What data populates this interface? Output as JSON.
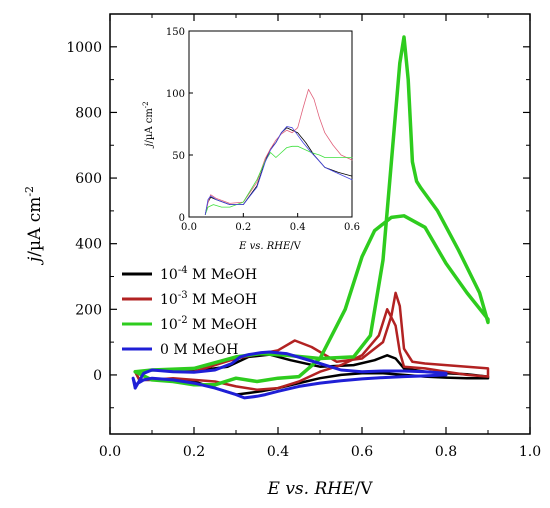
{
  "chart_data": [
    {
      "type": "line",
      "xlabel": "E vs. RHE/V",
      "ylabel": "j/µA cm-2",
      "xlim": [
        0.0,
        1.0
      ],
      "ylim": [
        -180,
        1100
      ],
      "xticks": [
        "0.0",
        "0.2",
        "0.4",
        "0.6",
        "0.8",
        "1.0"
      ],
      "yticks": [
        "0",
        "200",
        "400",
        "600",
        "800",
        "1000"
      ],
      "grid": false,
      "legend_position": "left-middle",
      "legend": [
        {
          "mantissa": "10",
          "exponent": "-4",
          "suffix": " M MeOH"
        },
        {
          "mantissa": "10",
          "exponent": "-3",
          "suffix": " M MeOH"
        },
        {
          "mantissa": "10",
          "exponent": "-2",
          "suffix": " M MeOH"
        },
        {
          "mantissa": "",
          "exponent": "",
          "suffix": "0 M MeOH"
        }
      ],
      "series": [
        {
          "color": "#000000",
          "width": 2.5,
          "x": [
            0.06,
            0.1,
            0.2,
            0.28,
            0.33,
            0.38,
            0.43,
            0.5,
            0.58,
            0.63,
            0.66,
            0.68,
            0.7,
            0.75,
            0.8,
            0.85,
            0.9,
            0.9,
            0.85,
            0.8,
            0.75,
            0.7,
            0.65,
            0.6,
            0.55,
            0.5,
            0.45,
            0.4,
            0.36,
            0.33,
            0.3,
            0.25,
            0.2,
            0.15,
            0.1,
            0.07,
            0.06
          ],
          "y": [
            10,
            15,
            12,
            25,
            55,
            62,
            45,
            25,
            30,
            45,
            60,
            50,
            20,
            10,
            5,
            2,
            -5,
            -10,
            -10,
            -8,
            -5,
            0,
            5,
            5,
            0,
            -10,
            -25,
            -40,
            -50,
            -55,
            -60,
            -40,
            -20,
            -15,
            -15,
            -15,
            10
          ]
        },
        {
          "color": "#b22222",
          "width": 2.5,
          "x": [
            0.06,
            0.1,
            0.2,
            0.3,
            0.36,
            0.4,
            0.44,
            0.48,
            0.54,
            0.6,
            0.65,
            0.67,
            0.68,
            0.69,
            0.7,
            0.72,
            0.75,
            0.8,
            0.85,
            0.9,
            0.9,
            0.85,
            0.8,
            0.75,
            0.7,
            0.69,
            0.68,
            0.66,
            0.64,
            0.6,
            0.55,
            0.5,
            0.45,
            0.4,
            0.35,
            0.3,
            0.25,
            0.2,
            0.15,
            0.1,
            0.07,
            0.06
          ],
          "y": [
            10,
            15,
            10,
            50,
            65,
            75,
            105,
            85,
            40,
            50,
            100,
            180,
            250,
            210,
            80,
            40,
            35,
            30,
            25,
            20,
            -5,
            0,
            10,
            20,
            25,
            70,
            150,
            200,
            120,
            60,
            30,
            10,
            -20,
            -40,
            -45,
            -35,
            -20,
            -15,
            -10,
            -15,
            -15,
            10
          ]
        },
        {
          "color": "#2ecc1e",
          "width": 3.5,
          "x": [
            0.06,
            0.1,
            0.2,
            0.3,
            0.36,
            0.42,
            0.5,
            0.58,
            0.62,
            0.65,
            0.67,
            0.69,
            0.7,
            0.71,
            0.72,
            0.73,
            0.74,
            0.78,
            0.83,
            0.88,
            0.9,
            0.9,
            0.85,
            0.8,
            0.75,
            0.7,
            0.67,
            0.63,
            0.6,
            0.56,
            0.5,
            0.45,
            0.4,
            0.35,
            0.3,
            0.25,
            0.2,
            0.15,
            0.1,
            0.06
          ],
          "y": [
            10,
            15,
            20,
            55,
            65,
            60,
            50,
            55,
            120,
            350,
            650,
            950,
            1030,
            900,
            650,
            590,
            570,
            500,
            380,
            250,
            160,
            170,
            250,
            340,
            450,
            485,
            480,
            440,
            360,
            200,
            50,
            -5,
            -10,
            -20,
            -10,
            -30,
            -30,
            -20,
            -15,
            10
          ]
        },
        {
          "color": "#1f1fd6",
          "width": 3,
          "x": [
            0.06,
            0.08,
            0.1,
            0.15,
            0.2,
            0.25,
            0.29,
            0.31,
            0.33,
            0.36,
            0.38,
            0.42,
            0.46,
            0.5,
            0.55,
            0.6,
            0.65,
            0.7,
            0.75,
            0.8,
            0.8,
            0.75,
            0.7,
            0.65,
            0.6,
            0.55,
            0.5,
            0.45,
            0.4,
            0.37,
            0.35,
            0.32,
            0.3,
            0.25,
            0.2,
            0.15,
            0.1,
            0.08,
            0.06,
            0.055,
            0.06
          ],
          "y": [
            -40,
            5,
            15,
            10,
            8,
            15,
            35,
            55,
            62,
            68,
            70,
            65,
            50,
            35,
            15,
            10,
            12,
            12,
            10,
            5,
            0,
            -3,
            -5,
            -8,
            -12,
            -18,
            -25,
            -35,
            -50,
            -60,
            -65,
            -70,
            -60,
            -40,
            -25,
            -15,
            -10,
            -15,
            -30,
            -10,
            -40
          ]
        }
      ]
    },
    {
      "type": "line",
      "xlabel": "E vs. RHE/V",
      "ylabel": "j/µA cm-2",
      "xlim": [
        0.0,
        0.6
      ],
      "ylim": [
        0,
        150
      ],
      "xticks": [
        "0.0",
        "0.2",
        "0.4",
        "0.6"
      ],
      "yticks": [
        "0",
        "50",
        "100",
        "150"
      ],
      "grid": false,
      "series": [
        {
          "color": "#000000",
          "width": 0.8,
          "x": [
            0.06,
            0.07,
            0.08,
            0.1,
            0.15,
            0.2,
            0.25,
            0.28,
            0.3,
            0.32,
            0.34,
            0.36,
            0.38,
            0.4,
            0.43,
            0.46,
            0.5,
            0.55,
            0.6
          ],
          "y": [
            2,
            12,
            16,
            14,
            10,
            10,
            25,
            45,
            55,
            60,
            68,
            72,
            70,
            68,
            60,
            50,
            40,
            36,
            33
          ]
        },
        {
          "color": "#e0607a",
          "width": 0.8,
          "x": [
            0.06,
            0.07,
            0.08,
            0.1,
            0.15,
            0.2,
            0.25,
            0.28,
            0.3,
            0.32,
            0.34,
            0.36,
            0.38,
            0.4,
            0.42,
            0.44,
            0.46,
            0.48,
            0.5,
            0.53,
            0.56,
            0.6
          ],
          "y": [
            2,
            12,
            18,
            15,
            11,
            12,
            28,
            47,
            55,
            62,
            67,
            70,
            68,
            72,
            88,
            103,
            95,
            80,
            68,
            58,
            50,
            46
          ]
        },
        {
          "color": "#3fe03f",
          "width": 0.8,
          "x": [
            0.06,
            0.07,
            0.09,
            0.12,
            0.15,
            0.2,
            0.25,
            0.28,
            0.3,
            0.32,
            0.34,
            0.36,
            0.38,
            0.4,
            0.42,
            0.45,
            0.48,
            0.5,
            0.55,
            0.6
          ],
          "y": [
            2,
            8,
            10,
            8,
            8,
            12,
            30,
            45,
            52,
            48,
            52,
            56,
            57,
            57,
            55,
            52,
            50,
            48,
            48,
            48
          ]
        },
        {
          "color": "#4444e0",
          "width": 0.8,
          "x": [
            0.06,
            0.07,
            0.08,
            0.1,
            0.15,
            0.2,
            0.25,
            0.28,
            0.3,
            0.32,
            0.34,
            0.36,
            0.38,
            0.4,
            0.42,
            0.45,
            0.48,
            0.5,
            0.55,
            0.6
          ],
          "y": [
            2,
            14,
            17,
            14,
            10,
            10,
            24,
            44,
            54,
            60,
            68,
            73,
            72,
            66,
            60,
            52,
            45,
            40,
            35,
            30
          ]
        }
      ]
    }
  ]
}
